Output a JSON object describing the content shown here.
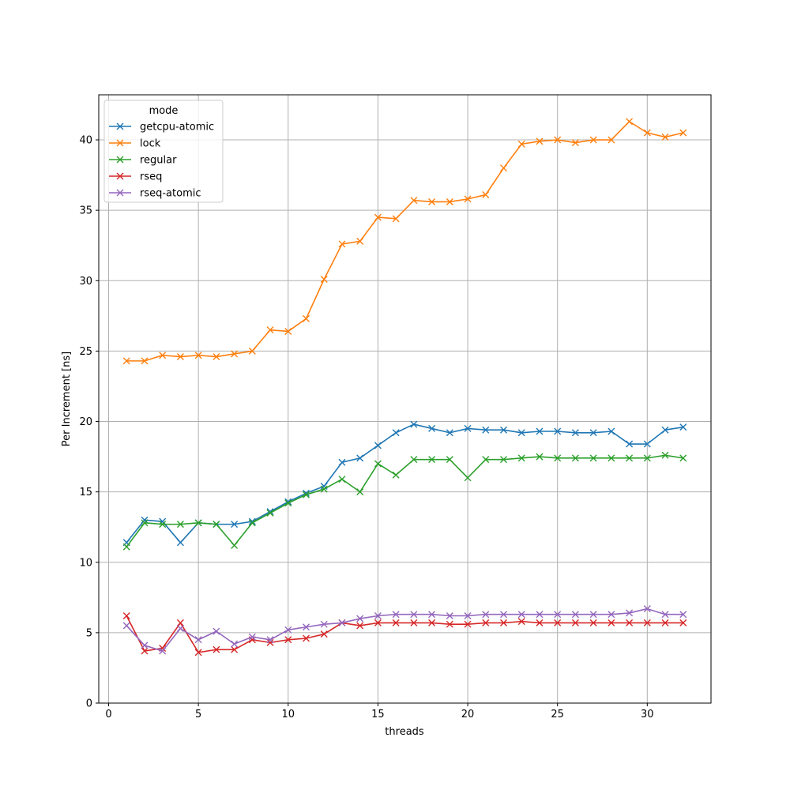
{
  "chart_data": {
    "type": "line",
    "xlabel": "threads",
    "ylabel": "Per Increment [ns]",
    "xlim": [
      -0.55,
      33.55
    ],
    "ylim": [
      0,
      43.2
    ],
    "x_ticks": [
      0,
      5,
      10,
      15,
      20,
      25,
      30
    ],
    "y_ticks": [
      0,
      5,
      10,
      15,
      20,
      25,
      30,
      35,
      40
    ],
    "grid": true,
    "legend": {
      "title": "mode",
      "placement": "top-left"
    },
    "marker": "x",
    "x": [
      1,
      2,
      3,
      4,
      5,
      6,
      7,
      8,
      9,
      10,
      11,
      12,
      13,
      14,
      15,
      16,
      17,
      18,
      19,
      20,
      21,
      22,
      23,
      24,
      25,
      26,
      27,
      28,
      29,
      30,
      31,
      32
    ],
    "series": [
      {
        "name": "getcpu-atomic",
        "color": "#1f77b4",
        "values": [
          11.4,
          13.0,
          12.9,
          11.4,
          12.8,
          12.7,
          12.7,
          12.9,
          13.6,
          14.3,
          14.9,
          15.4,
          17.1,
          17.4,
          18.3,
          19.2,
          19.8,
          19.5,
          19.2,
          19.5,
          19.4,
          19.4,
          19.2,
          19.3,
          19.3,
          19.2,
          19.2,
          19.3,
          18.4,
          18.4,
          19.4,
          19.6
        ]
      },
      {
        "name": "lock",
        "color": "#ff7f0e",
        "values": [
          24.3,
          24.3,
          24.7,
          24.6,
          24.7,
          24.6,
          24.8,
          25.0,
          26.5,
          26.4,
          27.3,
          30.1,
          32.6,
          32.8,
          34.5,
          34.4,
          35.7,
          35.6,
          35.6,
          35.8,
          36.1,
          38.0,
          39.7,
          39.9,
          40.0,
          39.8,
          40.0,
          40.0,
          41.3,
          40.5,
          40.2,
          40.5
        ]
      },
      {
        "name": "regular",
        "color": "#2ca02c",
        "values": [
          11.1,
          12.8,
          12.7,
          12.7,
          12.8,
          12.7,
          11.2,
          12.8,
          13.5,
          14.2,
          14.8,
          15.2,
          15.9,
          15.0,
          17.0,
          16.2,
          17.3,
          17.3,
          17.3,
          16.0,
          17.3,
          17.3,
          17.4,
          17.5,
          17.4,
          17.4,
          17.4,
          17.4,
          17.4,
          17.4,
          17.6,
          17.4
        ]
      },
      {
        "name": "rseq",
        "color": "#d62728",
        "values": [
          6.2,
          3.7,
          3.9,
          5.7,
          3.6,
          3.8,
          3.8,
          4.5,
          4.3,
          4.5,
          4.6,
          4.9,
          5.7,
          5.5,
          5.7,
          5.7,
          5.7,
          5.7,
          5.6,
          5.6,
          5.7,
          5.7,
          5.8,
          5.7,
          5.7,
          5.7,
          5.7,
          5.7,
          5.7,
          5.7,
          5.7,
          5.7
        ]
      },
      {
        "name": "rseq-atomic",
        "color": "#9467bd",
        "values": [
          5.5,
          4.1,
          3.7,
          5.3,
          4.5,
          5.1,
          4.2,
          4.7,
          4.5,
          5.2,
          5.4,
          5.6,
          5.7,
          6.0,
          6.2,
          6.3,
          6.3,
          6.3,
          6.2,
          6.2,
          6.3,
          6.3,
          6.3,
          6.3,
          6.3,
          6.3,
          6.3,
          6.3,
          6.4,
          6.7,
          6.3,
          6.3
        ]
      }
    ]
  }
}
